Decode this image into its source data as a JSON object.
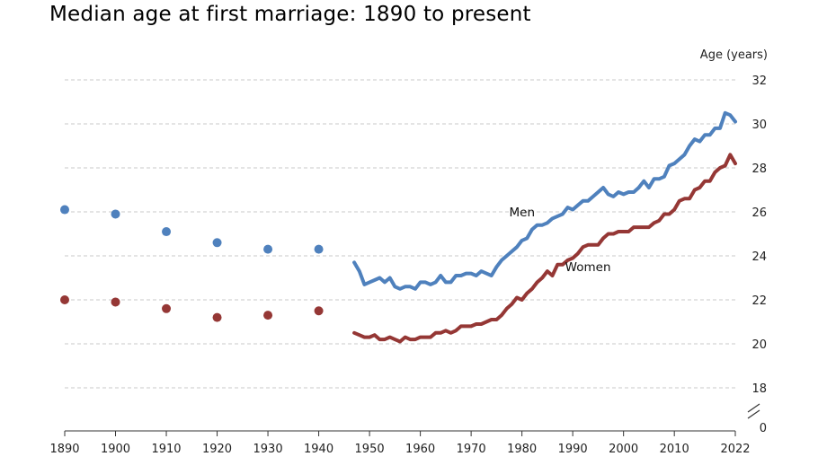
{
  "chart_data": {
    "type": "line",
    "title": "Median age at first marriage: 1890 to present",
    "ylabel": "Age (years)",
    "xlim": [
      1890,
      2022
    ],
    "ylim": [
      17,
      32
    ],
    "x_ticks": [
      "1890",
      "1900",
      "1910",
      "1920",
      "1930",
      "1940",
      "1950",
      "1960",
      "1970",
      "1980",
      "1990",
      "2000",
      "2010",
      "2022"
    ],
    "y_ticks": [
      "32",
      "30",
      "28",
      "26",
      "24",
      "22",
      "20",
      "18",
      "0"
    ],
    "axis_break": true,
    "colors": {
      "men": "#4f81bd",
      "women": "#953735"
    },
    "series": [
      {
        "name": "Men",
        "label": "Men",
        "decennial_points": [
          {
            "x": 1890,
            "y": 26.1
          },
          {
            "x": 1900,
            "y": 25.9
          },
          {
            "x": 1910,
            "y": 25.1
          },
          {
            "x": 1920,
            "y": 24.6
          },
          {
            "x": 1930,
            "y": 24.3
          },
          {
            "x": 1940,
            "y": 24.3
          }
        ],
        "annual_line": [
          [
            1947,
            23.7
          ],
          [
            1948,
            23.3
          ],
          [
            1949,
            22.7
          ],
          [
            1950,
            22.8
          ],
          [
            1951,
            22.9
          ],
          [
            1952,
            23.0
          ],
          [
            1953,
            22.8
          ],
          [
            1954,
            23.0
          ],
          [
            1955,
            22.6
          ],
          [
            1956,
            22.5
          ],
          [
            1957,
            22.6
          ],
          [
            1958,
            22.6
          ],
          [
            1959,
            22.5
          ],
          [
            1960,
            22.8
          ],
          [
            1961,
            22.8
          ],
          [
            1962,
            22.7
          ],
          [
            1963,
            22.8
          ],
          [
            1964,
            23.1
          ],
          [
            1965,
            22.8
          ],
          [
            1966,
            22.8
          ],
          [
            1967,
            23.1
          ],
          [
            1968,
            23.1
          ],
          [
            1969,
            23.2
          ],
          [
            1970,
            23.2
          ],
          [
            1971,
            23.1
          ],
          [
            1972,
            23.3
          ],
          [
            1973,
            23.2
          ],
          [
            1974,
            23.1
          ],
          [
            1975,
            23.5
          ],
          [
            1976,
            23.8
          ],
          [
            1977,
            24.0
          ],
          [
            1978,
            24.2
          ],
          [
            1979,
            24.4
          ],
          [
            1980,
            24.7
          ],
          [
            1981,
            24.8
          ],
          [
            1982,
            25.2
          ],
          [
            1983,
            25.4
          ],
          [
            1984,
            25.4
          ],
          [
            1985,
            25.5
          ],
          [
            1986,
            25.7
          ],
          [
            1987,
            25.8
          ],
          [
            1988,
            25.9
          ],
          [
            1989,
            26.2
          ],
          [
            1990,
            26.1
          ],
          [
            1991,
            26.3
          ],
          [
            1992,
            26.5
          ],
          [
            1993,
            26.5
          ],
          [
            1994,
            26.7
          ],
          [
            1995,
            26.9
          ],
          [
            1996,
            27.1
          ],
          [
            1997,
            26.8
          ],
          [
            1998,
            26.7
          ],
          [
            1999,
            26.9
          ],
          [
            2000,
            26.8
          ],
          [
            2001,
            26.9
          ],
          [
            2002,
            26.9
          ],
          [
            2003,
            27.1
          ],
          [
            2004,
            27.4
          ],
          [
            2005,
            27.1
          ],
          [
            2006,
            27.5
          ],
          [
            2007,
            27.5
          ],
          [
            2008,
            27.6
          ],
          [
            2009,
            28.1
          ],
          [
            2010,
            28.2
          ],
          [
            2011,
            28.4
          ],
          [
            2012,
            28.6
          ],
          [
            2013,
            29.0
          ],
          [
            2014,
            29.3
          ],
          [
            2015,
            29.2
          ],
          [
            2016,
            29.5
          ],
          [
            2017,
            29.5
          ],
          [
            2018,
            29.8
          ],
          [
            2019,
            29.8
          ],
          [
            2020,
            30.5
          ],
          [
            2021,
            30.4
          ],
          [
            2022,
            30.1
          ]
        ]
      },
      {
        "name": "Women",
        "label": "Women",
        "decennial_points": [
          {
            "x": 1890,
            "y": 22.0
          },
          {
            "x": 1900,
            "y": 21.9
          },
          {
            "x": 1910,
            "y": 21.6
          },
          {
            "x": 1920,
            "y": 21.2
          },
          {
            "x": 1930,
            "y": 21.3
          },
          {
            "x": 1940,
            "y": 21.5
          }
        ],
        "annual_line": [
          [
            1947,
            20.5
          ],
          [
            1948,
            20.4
          ],
          [
            1949,
            20.3
          ],
          [
            1950,
            20.3
          ],
          [
            1951,
            20.4
          ],
          [
            1952,
            20.2
          ],
          [
            1953,
            20.2
          ],
          [
            1954,
            20.3
          ],
          [
            1955,
            20.2
          ],
          [
            1956,
            20.1
          ],
          [
            1957,
            20.3
          ],
          [
            1958,
            20.2
          ],
          [
            1959,
            20.2
          ],
          [
            1960,
            20.3
          ],
          [
            1961,
            20.3
          ],
          [
            1962,
            20.3
          ],
          [
            1963,
            20.5
          ],
          [
            1964,
            20.5
          ],
          [
            1965,
            20.6
          ],
          [
            1966,
            20.5
          ],
          [
            1967,
            20.6
          ],
          [
            1968,
            20.8
          ],
          [
            1969,
            20.8
          ],
          [
            1970,
            20.8
          ],
          [
            1971,
            20.9
          ],
          [
            1972,
            20.9
          ],
          [
            1973,
            21.0
          ],
          [
            1974,
            21.1
          ],
          [
            1975,
            21.1
          ],
          [
            1976,
            21.3
          ],
          [
            1977,
            21.6
          ],
          [
            1978,
            21.8
          ],
          [
            1979,
            22.1
          ],
          [
            1980,
            22.0
          ],
          [
            1981,
            22.3
          ],
          [
            1982,
            22.5
          ],
          [
            1983,
            22.8
          ],
          [
            1984,
            23.0
          ],
          [
            1985,
            23.3
          ],
          [
            1986,
            23.1
          ],
          [
            1987,
            23.6
          ],
          [
            1988,
            23.6
          ],
          [
            1989,
            23.8
          ],
          [
            1990,
            23.9
          ],
          [
            1991,
            24.1
          ],
          [
            1992,
            24.4
          ],
          [
            1993,
            24.5
          ],
          [
            1994,
            24.5
          ],
          [
            1995,
            24.5
          ],
          [
            1996,
            24.8
          ],
          [
            1997,
            25.0
          ],
          [
            1998,
            25.0
          ],
          [
            1999,
            25.1
          ],
          [
            2000,
            25.1
          ],
          [
            2001,
            25.1
          ],
          [
            2002,
            25.3
          ],
          [
            2003,
            25.3
          ],
          [
            2004,
            25.3
          ],
          [
            2005,
            25.3
          ],
          [
            2006,
            25.5
          ],
          [
            2007,
            25.6
          ],
          [
            2008,
            25.9
          ],
          [
            2009,
            25.9
          ],
          [
            2010,
            26.1
          ],
          [
            2011,
            26.5
          ],
          [
            2012,
            26.6
          ],
          [
            2013,
            26.6
          ],
          [
            2014,
            27.0
          ],
          [
            2015,
            27.1
          ],
          [
            2016,
            27.4
          ],
          [
            2017,
            27.4
          ],
          [
            2018,
            27.8
          ],
          [
            2019,
            28.0
          ],
          [
            2020,
            28.1
          ],
          [
            2021,
            28.6
          ],
          [
            2022,
            28.2
          ]
        ]
      }
    ]
  }
}
